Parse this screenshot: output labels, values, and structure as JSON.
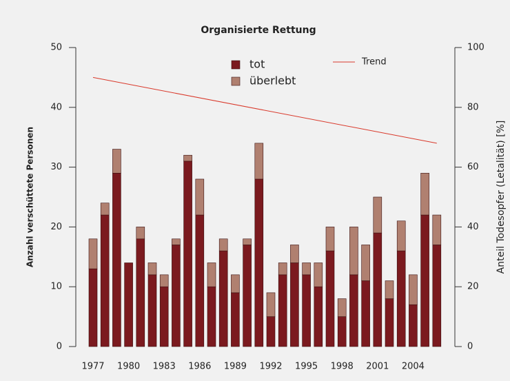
{
  "chart_data": {
    "type": "bar",
    "stacked": true,
    "title": "Organisierte Rettung",
    "y_label": "Anzahl verschüttete Personen",
    "y2_label": "Anteil Todesopfer (Letalität) [%]",
    "categories": [
      "1977",
      null,
      null,
      "1980",
      null,
      null,
      "1983",
      null,
      null,
      "1986",
      null,
      null,
      "1989",
      null,
      null,
      "1992",
      null,
      null,
      "1995",
      null,
      null,
      "1998",
      null,
      null,
      "2001",
      null,
      null,
      "2004",
      null,
      null
    ],
    "series": [
      {
        "name": "tot",
        "color": "#7b1a1f",
        "values": [
          13,
          22,
          29,
          14,
          18,
          12,
          10,
          17,
          31,
          22,
          10,
          16,
          9,
          17,
          28,
          5,
          12,
          14,
          12,
          10,
          16,
          5,
          12,
          11,
          19,
          8,
          16,
          7,
          22,
          17
        ]
      },
      {
        "name": "überlebt",
        "color": "#b08070",
        "values": [
          5,
          2,
          4,
          0,
          2,
          2,
          2,
          1,
          1,
          6,
          4,
          2,
          3,
          1,
          6,
          4,
          2,
          3,
          2,
          4,
          4,
          3,
          8,
          6,
          6,
          3,
          5,
          5,
          7,
          5
        ]
      }
    ],
    "trend": {
      "name": "Trend",
      "color": "#d9382a",
      "axis": "y2",
      "x": [
        1977,
        2006
      ],
      "values": [
        90,
        68
      ]
    },
    "ylim": [
      0,
      50
    ],
    "yticks": [
      0,
      10,
      20,
      30,
      40,
      50
    ],
    "y2lim": [
      0,
      100
    ],
    "y2ticks": [
      0,
      20,
      40,
      60,
      80,
      100
    ]
  }
}
